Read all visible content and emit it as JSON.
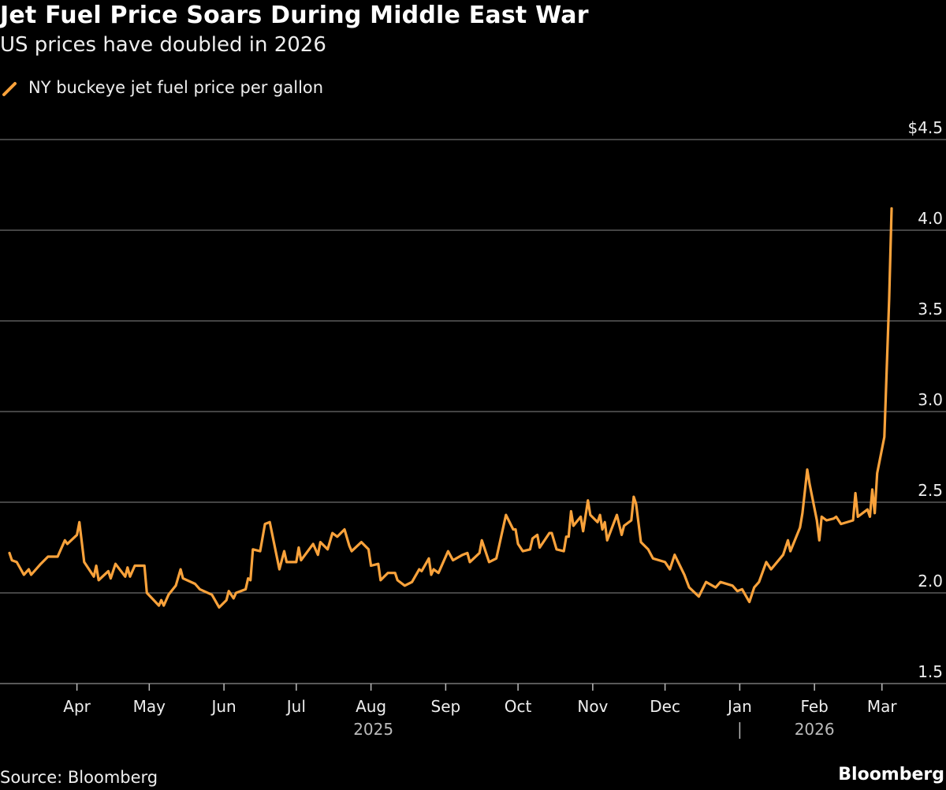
{
  "title": "Jet Fuel Price Soars During Middle East War",
  "subtitle": "US prices have doubled in 2026",
  "source": "Source: Bloomberg",
  "logo": "Bloomberg",
  "chart_data": {
    "type": "line",
    "title": "Jet Fuel Price Soars During Middle East War",
    "subtitle": "US prices have doubled in 2026",
    "line_color": "#f9a23b",
    "background": "#000000",
    "grid": true,
    "legend_placement": "top-left",
    "y_axis": {
      "ylim": [
        1.5,
        4.5
      ],
      "ticks": [
        1.5,
        2.0,
        2.5,
        3.0,
        3.5,
        4.0,
        4.5
      ],
      "tick_labels": [
        "1.5",
        "2.0",
        "2.5",
        "3.0",
        "3.5",
        "4.0",
        "$4.5"
      ],
      "position": "right"
    },
    "x_axis": {
      "xlim": [
        "2025-03-04",
        "2026-03-05"
      ],
      "ticks": [
        {
          "date": "2025-04-01",
          "label": "Apr"
        },
        {
          "date": "2025-05-01",
          "label": "May"
        },
        {
          "date": "2025-06-01",
          "label": "Jun"
        },
        {
          "date": "2025-07-01",
          "label": "Jul"
        },
        {
          "date": "2025-08-01",
          "label": "Aug"
        },
        {
          "date": "2025-09-01",
          "label": "Sep"
        },
        {
          "date": "2025-10-01",
          "label": "Oct"
        },
        {
          "date": "2025-11-01",
          "label": "Nov"
        },
        {
          "date": "2025-12-01",
          "label": "Dec"
        },
        {
          "date": "2026-01-01",
          "label": "Jan"
        },
        {
          "date": "2026-02-01",
          "label": "Feb"
        },
        {
          "date": "2026-03-01",
          "label": "Mar"
        }
      ],
      "years": [
        {
          "label": "2025",
          "center": "2025-08-02"
        },
        {
          "label": "2026",
          "center": "2026-02-01"
        }
      ],
      "year_separator": "2026-01-01"
    },
    "series": [
      {
        "name": "NY buckeye jet fuel price per gallon",
        "x": [
          "2025-03-04",
          "2025-03-05",
          "2025-03-07",
          "2025-03-10",
          "2025-03-12",
          "2025-03-13",
          "2025-03-17",
          "2025-03-20",
          "2025-03-24",
          "2025-03-27",
          "2025-03-28",
          "2025-04-01",
          "2025-04-02",
          "2025-04-04",
          "2025-04-08",
          "2025-04-09",
          "2025-04-10",
          "2025-04-14",
          "2025-04-15",
          "2025-04-17",
          "2025-04-21",
          "2025-04-22",
          "2025-04-23",
          "2025-04-25",
          "2025-04-29",
          "2025-04-30",
          "2025-05-05",
          "2025-05-06",
          "2025-05-07",
          "2025-05-09",
          "2025-05-12",
          "2025-05-14",
          "2025-05-15",
          "2025-05-20",
          "2025-05-22",
          "2025-05-27",
          "2025-05-30",
          "2025-06-02",
          "2025-06-03",
          "2025-06-05",
          "2025-06-06",
          "2025-06-10",
          "2025-06-11",
          "2025-06-12",
          "2025-06-13",
          "2025-06-16",
          "2025-06-18",
          "2025-06-20",
          "2025-06-24",
          "2025-06-26",
          "2025-06-27",
          "2025-07-01",
          "2025-07-02",
          "2025-07-03",
          "2025-07-08",
          "2025-07-10",
          "2025-07-11",
          "2025-07-14",
          "2025-07-16",
          "2025-07-18",
          "2025-07-21",
          "2025-07-23",
          "2025-07-24",
          "2025-07-28",
          "2025-07-31",
          "2025-08-01",
          "2025-08-04",
          "2025-08-05",
          "2025-08-08",
          "2025-08-11",
          "2025-08-12",
          "2025-08-15",
          "2025-08-18",
          "2025-08-21",
          "2025-08-22",
          "2025-08-25",
          "2025-08-26",
          "2025-08-27",
          "2025-08-29",
          "2025-09-02",
          "2025-09-04",
          "2025-09-08",
          "2025-09-10",
          "2025-09-11",
          "2025-09-15",
          "2025-09-16",
          "2025-09-19",
          "2025-09-22",
          "2025-09-26",
          "2025-09-29",
          "2025-09-30",
          "2025-10-01",
          "2025-10-03",
          "2025-10-06",
          "2025-10-07",
          "2025-10-09",
          "2025-10-10",
          "2025-10-14",
          "2025-10-15",
          "2025-10-17",
          "2025-10-20",
          "2025-10-21",
          "2025-10-22",
          "2025-10-23",
          "2025-10-24",
          "2025-10-27",
          "2025-10-28",
          "2025-10-30",
          "2025-10-31",
          "2025-11-03",
          "2025-11-04",
          "2025-11-05",
          "2025-11-06",
          "2025-11-07",
          "2025-11-11",
          "2025-11-13",
          "2025-11-14",
          "2025-11-17",
          "2025-11-18",
          "2025-11-19",
          "2025-11-21",
          "2025-11-24",
          "2025-11-26",
          "2025-12-01",
          "2025-12-03",
          "2025-12-05",
          "2025-12-09",
          "2025-12-11",
          "2025-12-15",
          "2025-12-18",
          "2025-12-22",
          "2025-12-24",
          "2025-12-29",
          "2025-12-31",
          "2026-01-02",
          "2026-01-05",
          "2026-01-07",
          "2026-01-09",
          "2026-01-12",
          "2026-01-14",
          "2026-01-19",
          "2026-01-21",
          "2026-01-22",
          "2026-01-26",
          "2026-01-27",
          "2026-01-29",
          "2026-01-30",
          "2026-02-02",
          "2026-02-03",
          "2026-02-04",
          "2026-02-06",
          "2026-02-09",
          "2026-02-10",
          "2026-02-12",
          "2026-02-17",
          "2026-02-18",
          "2026-02-19",
          "2026-02-23",
          "2026-02-24",
          "2026-02-25",
          "2026-02-26",
          "2026-02-27",
          "2026-03-02",
          "2026-03-04",
          "2026-03-05"
        ],
        "y": [
          2.22,
          2.18,
          2.17,
          2.1,
          2.13,
          2.1,
          2.16,
          2.2,
          2.2,
          2.29,
          2.27,
          2.32,
          2.39,
          2.17,
          2.09,
          2.15,
          2.07,
          2.12,
          2.08,
          2.16,
          2.09,
          2.14,
          2.09,
          2.15,
          2.15,
          2.0,
          1.93,
          1.96,
          1.93,
          1.99,
          2.04,
          2.13,
          2.08,
          2.05,
          2.02,
          1.99,
          1.92,
          1.96,
          2.01,
          1.97,
          2.0,
          2.02,
          2.08,
          2.07,
          2.24,
          2.23,
          2.38,
          2.39,
          2.13,
          2.23,
          2.17,
          2.17,
          2.25,
          2.18,
          2.27,
          2.21,
          2.28,
          2.24,
          2.33,
          2.31,
          2.35,
          2.26,
          2.23,
          2.28,
          2.24,
          2.15,
          2.16,
          2.07,
          2.11,
          2.11,
          2.07,
          2.04,
          2.06,
          2.13,
          2.12,
          2.19,
          2.1,
          2.13,
          2.11,
          2.23,
          2.18,
          2.21,
          2.22,
          2.17,
          2.22,
          2.29,
          2.17,
          2.19,
          2.43,
          2.35,
          2.35,
          2.27,
          2.23,
          2.24,
          2.3,
          2.32,
          2.25,
          2.33,
          2.33,
          2.24,
          2.23,
          2.31,
          2.31,
          2.45,
          2.37,
          2.42,
          2.34,
          2.51,
          2.43,
          2.39,
          2.43,
          2.35,
          2.39,
          2.29,
          2.43,
          2.32,
          2.37,
          2.4,
          2.53,
          2.49,
          2.28,
          2.24,
          2.19,
          2.17,
          2.13,
          2.21,
          2.1,
          2.03,
          1.98,
          2.06,
          2.03,
          2.06,
          2.04,
          2.01,
          2.02,
          1.95,
          2.03,
          2.06,
          2.17,
          2.13,
          2.21,
          2.29,
          2.23,
          2.36,
          2.44,
          2.68,
          2.6,
          2.4,
          2.29,
          2.42,
          2.4,
          2.41,
          2.42,
          2.38,
          2.4,
          2.55,
          2.42,
          2.46,
          2.42,
          2.57,
          2.44,
          2.66,
          2.86,
          3.62,
          4.12
        ]
      }
    ]
  }
}
